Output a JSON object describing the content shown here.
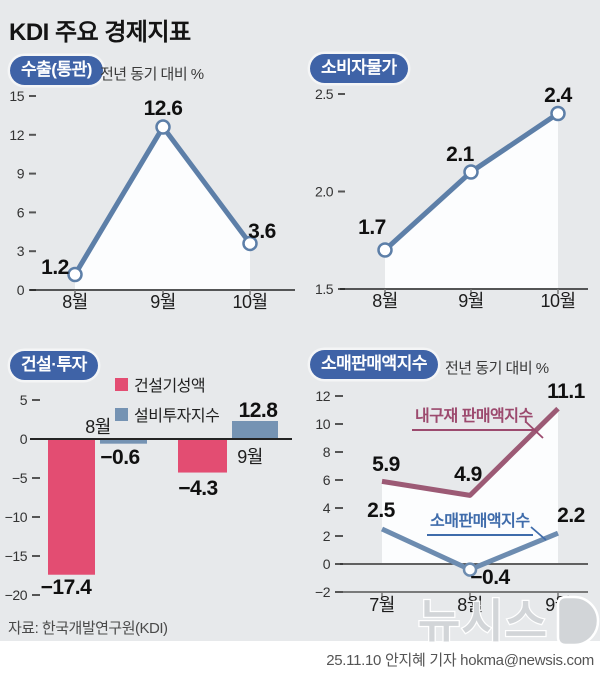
{
  "title": "KDI 주요 경제지표",
  "footer": {
    "source": "자료:  한국개발연구원(KDI)",
    "byline": "25.11.10 안지혜 기자 hokma@newsis.com"
  },
  "watermark": {
    "text": "뉴시스"
  },
  "colors": {
    "background": "#e7e9eb",
    "badge_blue": "#3f63a7",
    "line_blue": "#5d7fa8",
    "bar_pink": "#e34d72",
    "bar_blue": "#7593b3",
    "retail_durables_pink": "#9c5a75",
    "retail_blue": "#6d8cb0",
    "callout_pink": "#9c4a6e",
    "callout_blue": "#3f6cab",
    "area_fill": "#fcfdfe"
  },
  "chart_data": [
    {
      "id": "exports-customs",
      "type": "line",
      "title": "수출(통관)",
      "subtitle": "전년 동기 대비 %",
      "categories": [
        "8월",
        "9월",
        "10월"
      ],
      "values": [
        1.2,
        12.6,
        3.6
      ],
      "value_labels": [
        "1.2",
        "12.6",
        "3.6"
      ],
      "ylim": [
        0,
        15
      ],
      "yticks": [
        15,
        12,
        9,
        6,
        3,
        0
      ],
      "ytick_labels": [
        "15",
        "12",
        "9",
        "6",
        "3",
        "0"
      ],
      "line_color": "#5d7fa8",
      "grid": false,
      "area_fill": true
    },
    {
      "id": "consumer-prices",
      "type": "line",
      "title": "소비자물가",
      "subtitle": "",
      "categories": [
        "8월",
        "9월",
        "10월"
      ],
      "values": [
        1.7,
        2.1,
        2.4
      ],
      "value_labels": [
        "1.7",
        "2.1",
        "2.4"
      ],
      "ylim": [
        1.5,
        2.5
      ],
      "yticks": [
        2.5,
        2.0,
        1.5
      ],
      "ytick_labels": [
        "2.5",
        "2.0",
        "1.5"
      ],
      "line_color": "#5d7fa8",
      "grid": false,
      "area_fill": true
    },
    {
      "id": "construction-investment",
      "type": "bar",
      "title": "건설·투자",
      "subtitle": "",
      "categories": [
        "8월",
        "9월"
      ],
      "series": [
        {
          "name": "건설기성액",
          "color": "#e34d72",
          "values": [
            -17.4,
            -4.3
          ],
          "value_labels": [
            "−17.4",
            "−4.3"
          ]
        },
        {
          "name": "설비투자지수",
          "color": "#7593b3",
          "values": [
            -0.6,
            12.8
          ],
          "value_labels": [
            "−0.6",
            "12.8"
          ]
        }
      ],
      "ylim": [
        -20,
        5
      ],
      "yticks": [
        5,
        0,
        -5,
        -10,
        -15,
        -20
      ],
      "ytick_labels": [
        "5",
        "0",
        "−5",
        "−10",
        "−15",
        "−20"
      ],
      "grid": false,
      "legend_position": "top"
    },
    {
      "id": "retail-sales-index",
      "type": "line",
      "title": "소매판매액지수",
      "subtitle": "전년 동기 대비 %",
      "categories": [
        "7월",
        "8월",
        "9월"
      ],
      "series": [
        {
          "name": "내구재 판매액지수",
          "color": "#9c5a75",
          "values": [
            5.9,
            4.9,
            11.1
          ],
          "value_labels": [
            "5.9",
            "4.9",
            "11.1"
          ]
        },
        {
          "name": "소매판매액지수",
          "color": "#6d8cb0",
          "values": [
            2.5,
            -0.4,
            2.2
          ],
          "value_labels": [
            "2.5",
            "−0.4",
            "2.2"
          ]
        }
      ],
      "ylim": [
        -2,
        12
      ],
      "yticks": [
        12,
        10,
        8,
        6,
        4,
        2,
        0,
        -2
      ],
      "ytick_labels": [
        "12",
        "10",
        "8",
        "6",
        "4",
        "2",
        "0",
        "−2"
      ],
      "grid": false,
      "legend_position": "inline-callouts"
    }
  ]
}
